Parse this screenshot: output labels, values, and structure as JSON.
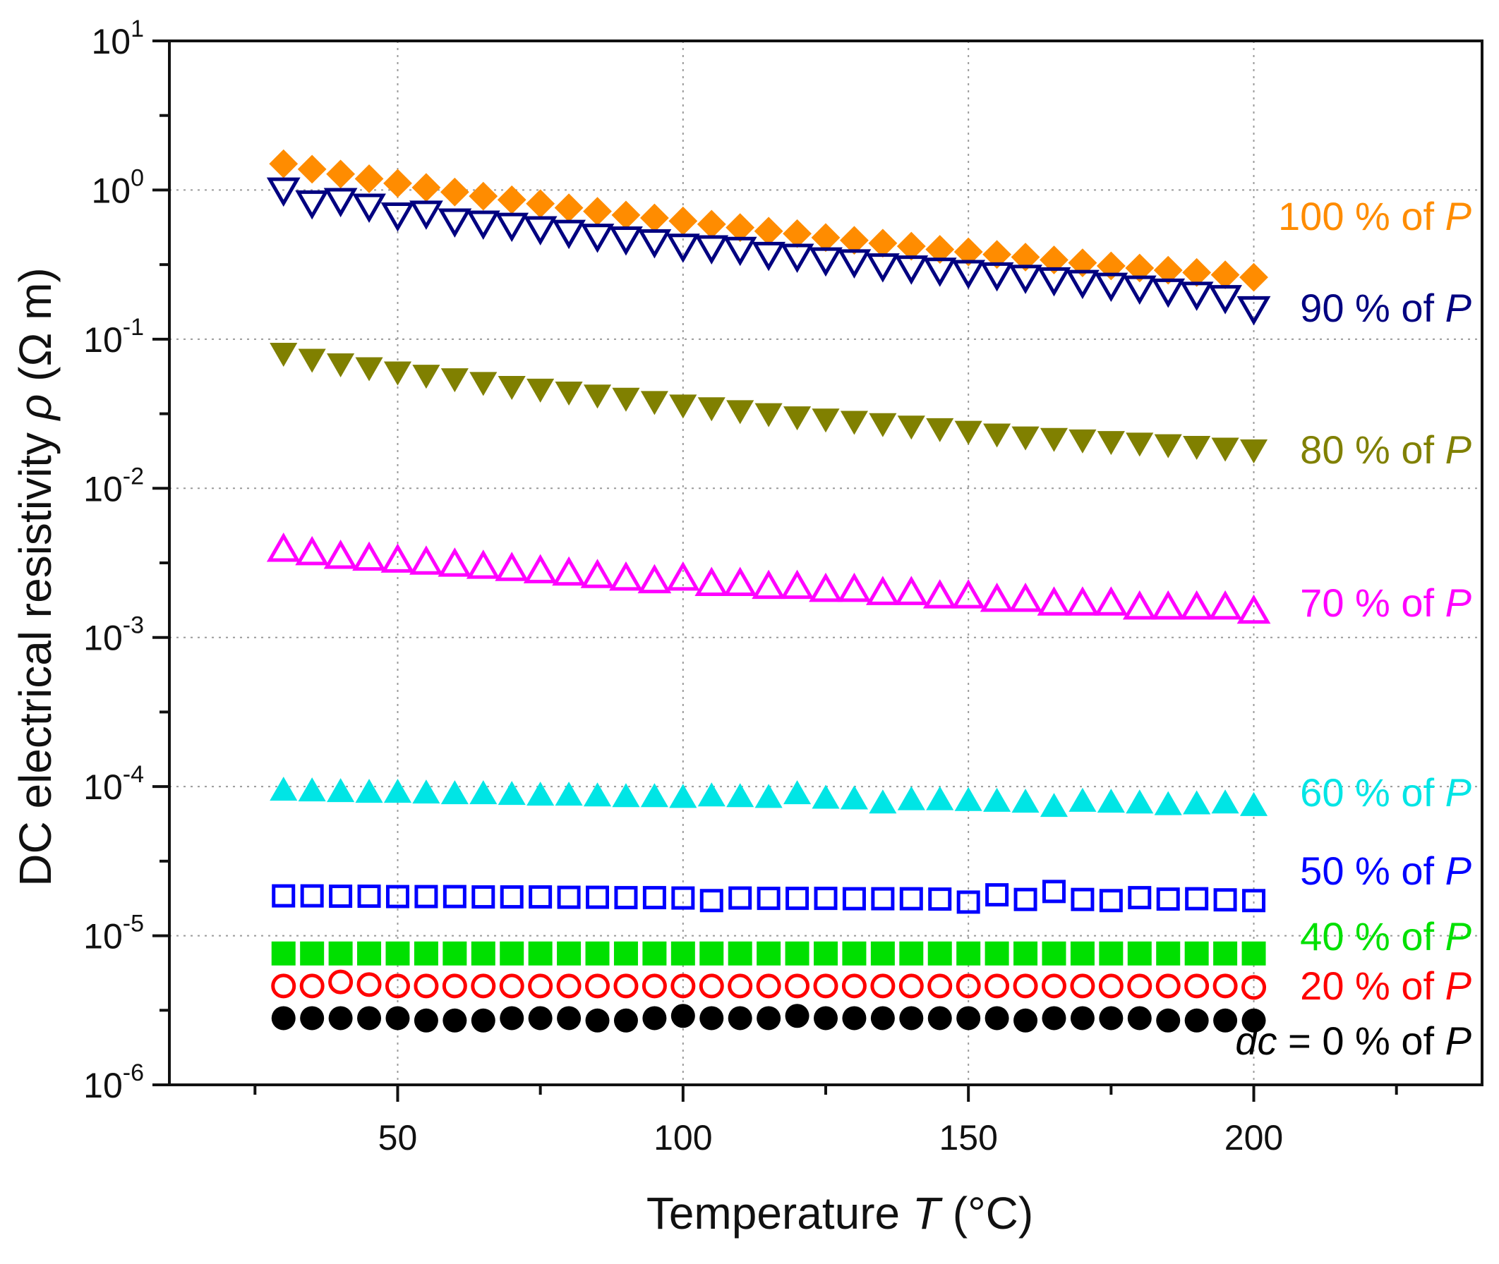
{
  "chart_data": {
    "type": "scatter",
    "title": "",
    "xlabel": {
      "text": "Temperature ",
      "var": "T",
      "unit": " (°C)"
    },
    "ylabel": {
      "text": "DC electrical resistivity ",
      "var": "ρ",
      "unit": " (Ω m)"
    },
    "x_scale": "linear",
    "y_scale": "log",
    "xlim": [
      10,
      240
    ],
    "ylim": [
      1e-06,
      10
    ],
    "x_ticks": [
      50,
      100,
      150,
      200
    ],
    "x_tick_labels": [
      "50",
      "100",
      "150",
      "200"
    ],
    "x_minor_ticks": [
      25,
      75,
      125,
      175,
      225
    ],
    "y_ticks": [
      -6,
      -5,
      -4,
      -3,
      -2,
      -1,
      0,
      1
    ],
    "y_tick_base": "10",
    "y_tick_exponents": [
      "-6",
      "-5",
      "-4",
      "-3",
      "-2",
      "-1",
      "0",
      "1"
    ],
    "grid": true,
    "x_start": 30,
    "x_step": 5,
    "series": [
      {
        "name": "100 % of P",
        "label": {
          "pre": "100 % of ",
          "var": "P"
        },
        "marker": "diamond",
        "filled": true,
        "color": "#ff8c00",
        "values": [
          1.5,
          1.38,
          1.28,
          1.19,
          1.11,
          1.04,
          0.97,
          0.91,
          0.86,
          0.81,
          0.76,
          0.72,
          0.68,
          0.65,
          0.62,
          0.59,
          0.56,
          0.53,
          0.51,
          0.48,
          0.46,
          0.44,
          0.42,
          0.4,
          0.385,
          0.37,
          0.355,
          0.34,
          0.325,
          0.31,
          0.3,
          0.29,
          0.28,
          0.27,
          0.26
        ]
      },
      {
        "name": "90 % of P",
        "label": {
          "pre": "90 % of ",
          "var": "P"
        },
        "marker": "triangle-down",
        "filled": false,
        "color": "#000080",
        "values": [
          1.0,
          0.82,
          0.85,
          0.78,
          0.68,
          0.7,
          0.62,
          0.6,
          0.58,
          0.55,
          0.52,
          0.49,
          0.47,
          0.45,
          0.42,
          0.41,
          0.4,
          0.37,
          0.36,
          0.34,
          0.33,
          0.31,
          0.3,
          0.29,
          0.28,
          0.27,
          0.26,
          0.25,
          0.24,
          0.23,
          0.22,
          0.21,
          0.2,
          0.19,
          0.16
        ]
      },
      {
        "name": "80 % of P",
        "label": {
          "pre": "80 % of ",
          "var": "P"
        },
        "marker": "triangle-down",
        "filled": true,
        "color": "#808000",
        "values": [
          0.08,
          0.073,
          0.068,
          0.064,
          0.06,
          0.057,
          0.054,
          0.051,
          0.048,
          0.046,
          0.044,
          0.042,
          0.04,
          0.038,
          0.036,
          0.0345,
          0.033,
          0.0315,
          0.03,
          0.029,
          0.028,
          0.027,
          0.026,
          0.025,
          0.024,
          0.023,
          0.022,
          0.0215,
          0.021,
          0.0205,
          0.02,
          0.0195,
          0.019,
          0.0185,
          0.018
        ]
      },
      {
        "name": "70 % of P",
        "label": {
          "pre": "70 % of ",
          "var": "P"
        },
        "marker": "triangle-up",
        "filled": false,
        "color": "#ff00ff",
        "values": [
          0.0039,
          0.0037,
          0.0035,
          0.0034,
          0.0033,
          0.0032,
          0.0031,
          0.003,
          0.0029,
          0.0028,
          0.0027,
          0.0026,
          0.0025,
          0.0024,
          0.0025,
          0.0023,
          0.0023,
          0.0022,
          0.0022,
          0.0021,
          0.0021,
          0.002,
          0.002,
          0.0019,
          0.0019,
          0.0018,
          0.0018,
          0.0017,
          0.0017,
          0.0017,
          0.0016,
          0.0016,
          0.0016,
          0.0016,
          0.0015
        ]
      },
      {
        "name": "60 % of P",
        "label": {
          "pre": "60 % of ",
          "var": "P"
        },
        "marker": "triangle-up",
        "filled": true,
        "color": "#00e5e5",
        "values": [
          9.5e-05,
          9.4e-05,
          9.3e-05,
          9.2e-05,
          9.2e-05,
          9.1e-05,
          9e-05,
          9e-05,
          8.9e-05,
          8.8e-05,
          8.8e-05,
          8.7e-05,
          8.6e-05,
          8.6e-05,
          8.5e-05,
          8.7e-05,
          8.6e-05,
          8.5e-05,
          9e-05,
          8.4e-05,
          8.3e-05,
          7.8e-05,
          8.2e-05,
          8.2e-05,
          8.1e-05,
          8e-05,
          7.9e-05,
          7.4e-05,
          8e-05,
          7.9e-05,
          7.8e-05,
          7.6e-05,
          7.7e-05,
          7.8e-05,
          7.5e-05
        ]
      },
      {
        "name": "50 % of P",
        "label": {
          "pre": "50 % of ",
          "var": "P"
        },
        "marker": "square",
        "filled": false,
        "color": "#0000ff",
        "values": [
          1.85e-05,
          1.85e-05,
          1.84e-05,
          1.84e-05,
          1.83e-05,
          1.83e-05,
          1.83e-05,
          1.82e-05,
          1.82e-05,
          1.82e-05,
          1.81e-05,
          1.81e-05,
          1.8e-05,
          1.8e-05,
          1.79e-05,
          1.72e-05,
          1.79e-05,
          1.78e-05,
          1.78e-05,
          1.78e-05,
          1.77e-05,
          1.77e-05,
          1.77e-05,
          1.76e-05,
          1.68e-05,
          1.88e-05,
          1.75e-05,
          1.98e-05,
          1.75e-05,
          1.72e-05,
          1.8e-05,
          1.76e-05,
          1.77e-05,
          1.74e-05,
          1.72e-05
        ]
      },
      {
        "name": "40 % of P",
        "label": {
          "pre": "40 % of ",
          "var": "P"
        },
        "marker": "square",
        "filled": true,
        "color": "#00e000",
        "values": [
          7.6e-06,
          7.6e-06,
          7.6e-06,
          7.6e-06,
          7.6e-06,
          7.6e-06,
          7.6e-06,
          7.6e-06,
          7.6e-06,
          7.6e-06,
          7.6e-06,
          7.6e-06,
          7.6e-06,
          7.6e-06,
          7.6e-06,
          7.6e-06,
          7.6e-06,
          7.6e-06,
          7.6e-06,
          7.6e-06,
          7.6e-06,
          7.6e-06,
          7.6e-06,
          7.6e-06,
          7.6e-06,
          7.6e-06,
          7.6e-06,
          7.6e-06,
          7.6e-06,
          7.6e-06,
          7.6e-06,
          7.6e-06,
          7.6e-06,
          7.6e-06,
          7.6e-06
        ]
      },
      {
        "name": "20 % of P",
        "label": {
          "pre": "20 % of ",
          "var": "P"
        },
        "marker": "circle",
        "filled": false,
        "color": "#ff0000",
        "values": [
          4.6e-06,
          4.6e-06,
          4.9e-06,
          4.7e-06,
          4.6e-06,
          4.6e-06,
          4.6e-06,
          4.6e-06,
          4.6e-06,
          4.6e-06,
          4.6e-06,
          4.6e-06,
          4.6e-06,
          4.6e-06,
          4.6e-06,
          4.6e-06,
          4.6e-06,
          4.6e-06,
          4.6e-06,
          4.6e-06,
          4.6e-06,
          4.6e-06,
          4.6e-06,
          4.6e-06,
          4.6e-06,
          4.6e-06,
          4.6e-06,
          4.6e-06,
          4.6e-06,
          4.6e-06,
          4.6e-06,
          4.6e-06,
          4.6e-06,
          4.6e-06,
          4.5e-06
        ]
      },
      {
        "name": "dc = 0 % of P",
        "label": {
          "ital_pre": "dc",
          "pre": " = 0 % of ",
          "var": "P"
        },
        "marker": "circle",
        "filled": true,
        "color": "#000000",
        "values": [
          2.8e-06,
          2.8e-06,
          2.8e-06,
          2.8e-06,
          2.8e-06,
          2.7e-06,
          2.7e-06,
          2.7e-06,
          2.8e-06,
          2.8e-06,
          2.8e-06,
          2.7e-06,
          2.7e-06,
          2.8e-06,
          2.9e-06,
          2.8e-06,
          2.8e-06,
          2.8e-06,
          2.9e-06,
          2.8e-06,
          2.8e-06,
          2.8e-06,
          2.8e-06,
          2.8e-06,
          2.8e-06,
          2.8e-06,
          2.7e-06,
          2.8e-06,
          2.8e-06,
          2.8e-06,
          2.8e-06,
          2.7e-06,
          2.7e-06,
          2.7e-06,
          2.7e-06
        ]
      }
    ]
  }
}
